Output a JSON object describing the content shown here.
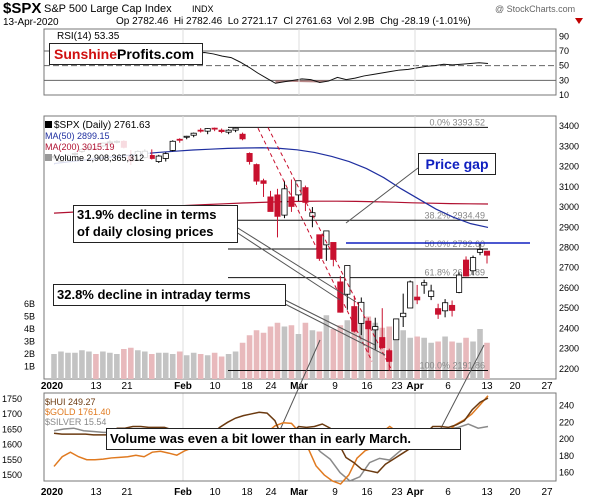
{
  "header": {
    "symbol": "$SPX",
    "name": "S&P 500 Large Cap Index",
    "exchange": "INDX",
    "date": "13-Apr-2020",
    "ohlc": "Op 2782.46  Hi 2782.46  Lo 2721.17  Cl 2761.63  Vol 2.9B  Chg -28.19 (-1.01%)",
    "watermark": "@ StockCharts.com"
  },
  "brand": {
    "part1": "Sunshine",
    "part2": "Profits.com"
  },
  "legend_main": [
    {
      "label": "$SPX (Daily) 2761.63",
      "color": "#000000"
    },
    {
      "label": "MA(50) 2899.15",
      "color": "#1f2fa0"
    },
    {
      "label": "MA(200) 3015.19",
      "color": "#b01030"
    },
    {
      "label": "Volume 2,908,365,312",
      "color": "#555555"
    }
  ],
  "legend_lower": [
    {
      "label": "$HUI 249.27",
      "color": "#6b3a10"
    },
    {
      "label": "$GOLD 1761.40",
      "color": "#e07a20"
    },
    {
      "label": "$SILVER 15.54",
      "color": "#888888"
    }
  ],
  "annotations": {
    "price_gap": "Price gap",
    "decline_close_1": "31.9% decline in terms",
    "decline_close_2": "of daily closing prices",
    "decline_intraday": "32.8% decline in intraday terms",
    "volume_note": "Volume was even a bit lower than in early March."
  },
  "chart_data": [
    {
      "type": "line",
      "name": "RSI panel",
      "title": "RSI(14) 53.35",
      "ylim": [
        10,
        100
      ],
      "y_ticks": [
        10,
        30,
        50,
        70,
        90
      ],
      "y_tick_labels": [
        "10",
        "30",
        "50",
        "70",
        "90"
      ],
      "reference_lines": [
        30,
        50,
        70
      ],
      "values": [
        62,
        64,
        66,
        65,
        68,
        67,
        66,
        63,
        61,
        64,
        66,
        68,
        67,
        65,
        64,
        66,
        67,
        68,
        66,
        63,
        61,
        55,
        48,
        40,
        33,
        26,
        28,
        30,
        32,
        31,
        27,
        29,
        34,
        31,
        33,
        36,
        38,
        40,
        42,
        44,
        45,
        47,
        49,
        50,
        52,
        51,
        52,
        53,
        54,
        53
      ]
    },
    {
      "type": "candlestick",
      "name": "S&P 500 daily",
      "ylim": [
        2150,
        3450
      ],
      "y_ticks": [
        2200,
        2300,
        2400,
        2500,
        2600,
        2700,
        2800,
        2900,
        3000,
        3100,
        3200,
        3300,
        3400
      ],
      "y_tick_labels": [
        "2200",
        "2300",
        "2400",
        "2500",
        "2600",
        "2700",
        "2800",
        "2900",
        "3000",
        "3100",
        "3200",
        "3300",
        "3400"
      ],
      "x_tick_labels": [
        "2020",
        "13",
        "21",
        "Feb",
        "10",
        "18",
        "24",
        "Mar",
        "9",
        "16",
        "23",
        "Apr",
        "6",
        "13",
        "20",
        "27"
      ],
      "fib_levels": [
        {
          "label": "0.0% 3393.52",
          "value": 3393.52
        },
        {
          "label": "38.2% 2934.49",
          "value": 2934.49
        },
        {
          "label": "50.0% 2792.60",
          "value": 2792.6
        },
        {
          "label": "61.8% 2650.89",
          "value": 2650.89
        },
        {
          "label": "100.0% 2191.86",
          "value": 2191.86
        }
      ],
      "gap_line": 2822,
      "candles": [
        {
          "o": 3244,
          "h": 3258,
          "l": 3235,
          "c": 3250
        },
        {
          "o": 3226,
          "h": 3246,
          "l": 3222,
          "c": 3240
        },
        {
          "o": 3238,
          "h": 3260,
          "l": 3230,
          "c": 3255
        },
        {
          "o": 3260,
          "h": 3270,
          "l": 3248,
          "c": 3265
        },
        {
          "o": 3275,
          "h": 3290,
          "l": 3268,
          "c": 3285
        },
        {
          "o": 3285,
          "h": 3300,
          "l": 3280,
          "c": 3295
        },
        {
          "o": 3290,
          "h": 3302,
          "l": 3282,
          "c": 3289
        },
        {
          "o": 3302,
          "h": 3318,
          "l": 3298,
          "c": 3316
        },
        {
          "o": 3320,
          "h": 3330,
          "l": 3305,
          "c": 3322
        },
        {
          "o": 3323,
          "h": 3330,
          "l": 3315,
          "c": 3325
        },
        {
          "o": 3325,
          "h": 3330,
          "l": 3290,
          "c": 3295
        },
        {
          "o": 3250,
          "h": 3282,
          "l": 3212,
          "c": 3228
        },
        {
          "o": 3235,
          "h": 3280,
          "l": 3230,
          "c": 3275
        },
        {
          "o": 3245,
          "h": 3285,
          "l": 3240,
          "c": 3276
        },
        {
          "o": 3255,
          "h": 3285,
          "l": 3235,
          "c": 3240
        },
        {
          "o": 3225,
          "h": 3258,
          "l": 3218,
          "c": 3252
        },
        {
          "o": 3240,
          "h": 3270,
          "l": 3225,
          "c": 3264
        },
        {
          "o": 3280,
          "h": 3330,
          "l": 3275,
          "c": 3325
        },
        {
          "o": 3335,
          "h": 3340,
          "l": 3318,
          "c": 3331
        },
        {
          "o": 3345,
          "h": 3352,
          "l": 3335,
          "c": 3350
        },
        {
          "o": 3355,
          "h": 3368,
          "l": 3345,
          "c": 3365
        },
        {
          "o": 3380,
          "h": 3390,
          "l": 3368,
          "c": 3375
        },
        {
          "o": 3375,
          "h": 3390,
          "l": 3360,
          "c": 3388
        },
        {
          "o": 3390,
          "h": 3393,
          "l": 3375,
          "c": 3386
        },
        {
          "o": 3380,
          "h": 3388,
          "l": 3365,
          "c": 3373
        },
        {
          "o": 3370,
          "h": 3385,
          "l": 3360,
          "c": 3380
        },
        {
          "o": 3380,
          "h": 3392,
          "l": 3370,
          "c": 3390
        },
        {
          "o": 3360,
          "h": 3368,
          "l": 3330,
          "c": 3337
        },
        {
          "o": 3265,
          "h": 3270,
          "l": 3210,
          "c": 3225
        },
        {
          "o": 3210,
          "h": 3215,
          "l": 3110,
          "c": 3128
        },
        {
          "o": 3130,
          "h": 3140,
          "l": 3050,
          "c": 3117
        },
        {
          "o": 3050,
          "h": 3080,
          "l": 2980,
          "c": 2978
        },
        {
          "o": 3060,
          "h": 3090,
          "l": 2850,
          "c": 2954
        },
        {
          "o": 2960,
          "h": 3130,
          "l": 2945,
          "c": 3090
        },
        {
          "o": 3050,
          "h": 3136,
          "l": 2976,
          "c": 3003
        },
        {
          "o": 3060,
          "h": 3130,
          "l": 3030,
          "c": 3130
        },
        {
          "o": 3096,
          "h": 3106,
          "l": 2980,
          "c": 3023
        },
        {
          "o": 2954,
          "h": 3000,
          "l": 2900,
          "c": 2972
        },
        {
          "o": 2863,
          "h": 2863,
          "l": 2734,
          "c": 2746
        },
        {
          "o": 2813,
          "h": 2882,
          "l": 2734,
          "c": 2882
        },
        {
          "o": 2825,
          "h": 2825,
          "l": 2707,
          "c": 2741
        },
        {
          "o": 2630,
          "h": 2660,
          "l": 2478,
          "c": 2480
        },
        {
          "o": 2569,
          "h": 2711,
          "l": 2492,
          "c": 2711
        },
        {
          "o": 2508,
          "h": 2562,
          "l": 2380,
          "c": 2386
        },
        {
          "o": 2425,
          "h": 2553,
          "l": 2367,
          "c": 2529
        },
        {
          "o": 2436,
          "h": 2453,
          "l": 2280,
          "c": 2398
        },
        {
          "o": 2393,
          "h": 2453,
          "l": 2295,
          "c": 2409
        },
        {
          "o": 2355,
          "h": 2500,
          "l": 2300,
          "c": 2305
        },
        {
          "o": 2290,
          "h": 2300,
          "l": 2191,
          "c": 2237
        },
        {
          "o": 2344,
          "h": 2449,
          "l": 2344,
          "c": 2447
        },
        {
          "o": 2458,
          "h": 2572,
          "l": 2407,
          "c": 2475
        },
        {
          "o": 2501,
          "h": 2637,
          "l": 2501,
          "c": 2630
        },
        {
          "o": 2555,
          "h": 2615,
          "l": 2520,
          "c": 2541
        },
        {
          "o": 2614,
          "h": 2641,
          "l": 2571,
          "c": 2626
        },
        {
          "o": 2558,
          "h": 2616,
          "l": 2540,
          "c": 2585
        },
        {
          "o": 2498,
          "h": 2522,
          "l": 2447,
          "c": 2470
        },
        {
          "o": 2487,
          "h": 2545,
          "l": 2455,
          "c": 2527
        },
        {
          "o": 2514,
          "h": 2538,
          "l": 2459,
          "c": 2489
        },
        {
          "o": 2578,
          "h": 2676,
          "l": 2574,
          "c": 2664
        },
        {
          "o": 2738,
          "h": 2756,
          "l": 2657,
          "c": 2659
        },
        {
          "o": 2685,
          "h": 2760,
          "l": 2663,
          "c": 2750
        },
        {
          "o": 2776,
          "h": 2818,
          "l": 2762,
          "c": 2790
        },
        {
          "o": 2782,
          "h": 2782,
          "l": 2721,
          "c": 2762
        }
      ],
      "ma50": [
        3215,
        3225,
        3235,
        3245,
        3253,
        3262,
        3270,
        3276,
        3282,
        3286,
        3290,
        3292,
        3293,
        3290,
        3283,
        3270,
        3250,
        3225,
        3190,
        3145,
        3090,
        3040,
        2990,
        2950,
        2918,
        2899
      ],
      "ma200": [
        2970,
        2975,
        2980,
        2986,
        2992,
        2998,
        3003,
        3008,
        3012,
        3016,
        3020,
        3023,
        3026,
        3028,
        3029,
        3029,
        3028,
        3026,
        3024,
        3021,
        3019,
        3017,
        3016,
        3015
      ],
      "volume_ticks": [
        "1B",
        "2B",
        "3B",
        "4B",
        "5B",
        "6B"
      ],
      "volume": [
        2.0,
        2.2,
        2.1,
        2.1,
        2.3,
        2.2,
        2.0,
        2.2,
        2.1,
        2.0,
        2.4,
        2.5,
        2.3,
        2.2,
        2.0,
        2.1,
        2.1,
        2.0,
        2.2,
        1.9,
        2.1,
        2.0,
        1.9,
        2.1,
        1.8,
        2.0,
        2.2,
        2.9,
        3.5,
        3.9,
        3.7,
        4.2,
        4.5,
        4.2,
        4.3,
        3.6,
        4.5,
        3.9,
        3.8,
        5.1,
        4.0,
        4.3,
        4.7,
        3.9,
        5.8,
        5.0,
        4.5,
        4.1,
        4.2,
        3.8,
        3.9,
        3.3,
        3.4,
        3.3,
        2.9,
        3.0,
        3.4,
        3.0,
        2.9,
        3.3,
        3.0,
        4.0,
        2.9
      ]
    },
    {
      "type": "line",
      "name": "Precious metals",
      "left_ticks": [
        1500,
        1550,
        1600,
        1650,
        1700,
        1750
      ],
      "right_ticks": [
        160,
        180,
        200,
        220,
        240
      ],
      "series": [
        {
          "name": "$HUI 249.27",
          "color": "#6b3a10",
          "values": [
            207,
            206,
            206,
            206,
            206,
            205,
            205,
            205,
            213,
            213,
            215,
            215,
            214,
            214,
            214,
            211,
            207,
            207,
            205,
            204,
            206,
            214,
            220,
            225,
            228,
            230,
            232,
            231,
            222,
            200,
            205,
            215,
            214,
            215,
            218,
            213,
            196,
            178,
            172,
            164,
            162,
            160,
            170,
            176,
            182,
            188,
            200,
            206,
            215,
            215,
            214,
            217,
            222,
            235,
            244,
            249
          ]
        },
        {
          "name": "$GOLD 1761.40",
          "color": "#e07a20",
          "values": [
            1528,
            1560,
            1575,
            1560,
            1550,
            1550,
            1552,
            1556,
            1558,
            1560,
            1565,
            1560,
            1575,
            1578,
            1572,
            1565,
            1580,
            1590,
            1606,
            1612,
            1630,
            1645,
            1648,
            1640,
            1635,
            1633,
            1640,
            1662,
            1672,
            1670,
            1640,
            1590,
            1530,
            1500,
            1480,
            1470,
            1500,
            1555,
            1580,
            1590,
            1640,
            1660,
            1640,
            1610,
            1600,
            1595,
            1610,
            1620,
            1640,
            1665,
            1680,
            1700,
            1730,
            1761
          ]
        },
        {
          "name": "$SILVER 15.54",
          "color": "#8a8a8a",
          "values": [
            210,
            212,
            213,
            210,
            209,
            208,
            208,
            208,
            210,
            209,
            208,
            206,
            206,
            207,
            208,
            206,
            204,
            206,
            205,
            209,
            209,
            208,
            210,
            210,
            206,
            207,
            198,
            185,
            176,
            160,
            150,
            155,
            172,
            177,
            175,
            185,
            194,
            200,
            205,
            210,
            212,
            214,
            218,
            213,
            215
          ]
        }
      ]
    }
  ]
}
